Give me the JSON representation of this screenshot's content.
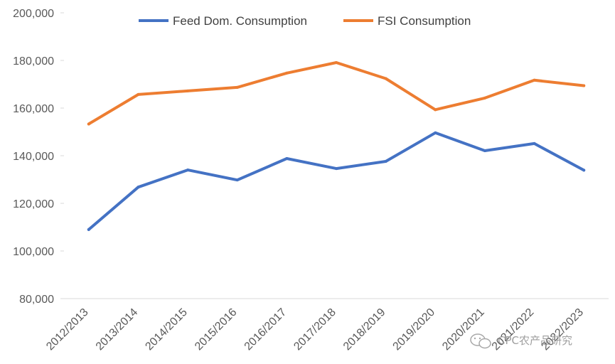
{
  "chart_data": {
    "type": "line",
    "categories": [
      "2012/2013",
      "2013/2014",
      "2014/2015",
      "2015/2016",
      "2016/2017",
      "2017/2018",
      "2018/2019",
      "2019/2020",
      "2020/2021",
      "2021/2022",
      "2022/2023"
    ],
    "series": [
      {
        "name": "Feed Dom. Consumption",
        "color": "#4472C4",
        "values": [
          109000,
          126800,
          134000,
          129800,
          138800,
          134600,
          137600,
          149600,
          142100,
          145100,
          133900
        ]
      },
      {
        "name": "FSI Consumption",
        "color": "#ED7D31",
        "values": [
          153300,
          165700,
          167200,
          168700,
          174700,
          179100,
          172400,
          159300,
          164200,
          171700,
          169400
        ]
      }
    ],
    "ylim": [
      80000,
      200000
    ],
    "yticks": [
      "80,000",
      "100,000",
      "120,000",
      "140,000",
      "160,000",
      "180,000",
      "200,000"
    ],
    "legend_position": "top",
    "grid": false
  },
  "watermark": {
    "text": "CPC农产品研究",
    "icon": "wechat-icon"
  }
}
